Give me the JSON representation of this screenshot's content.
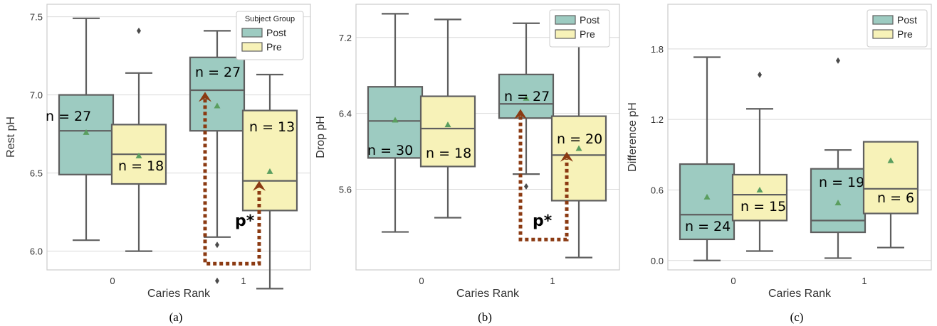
{
  "colors": {
    "post": "#9dcbc1",
    "pre": "#f7f2b8",
    "line": "#5f5f5f",
    "mean": "#5a9e5f",
    "arrow": "#8b3a12",
    "grid": "#d9d9d9",
    "frame": "#cccccc"
  },
  "chart_data": [
    {
      "type": "box",
      "caption": "(a)",
      "xlabel": "Caries Rank",
      "ylabel": "Rest pH",
      "categories": [
        "0",
        "1"
      ],
      "ylim": [
        5.88,
        7.58
      ],
      "yticks": [
        "6.0",
        "6.5",
        "7.0",
        "7.5"
      ],
      "grid": true,
      "legend": {
        "title": "Subject Group",
        "position": "top-right",
        "entries": [
          "Post",
          "Pre"
        ]
      },
      "boxes": [
        {
          "category": "0",
          "group": "Post",
          "whisker_low": 6.07,
          "q1": 6.49,
          "median": 6.77,
          "q3": 7.0,
          "whisker_high": 7.49,
          "mean": 6.76,
          "outliers": [],
          "n_label": "n = 27"
        },
        {
          "category": "0",
          "group": "Pre",
          "whisker_low": 6.0,
          "q1": 6.43,
          "median": 6.62,
          "q3": 6.81,
          "whisker_high": 7.14,
          "mean": 6.61,
          "outliers": [
            7.41
          ],
          "n_label": "n = 18"
        },
        {
          "category": "1",
          "group": "Post",
          "whisker_low": 6.09,
          "q1": 6.77,
          "median": 7.03,
          "q3": 7.24,
          "whisker_high": 7.41,
          "mean": 6.93,
          "outliers": [
            6.04,
            5.81
          ],
          "n_label": "n = 27"
        },
        {
          "category": "1",
          "group": "Pre",
          "whisker_low": 5.76,
          "q1": 6.26,
          "median": 6.45,
          "q3": 6.9,
          "whisker_high": 7.13,
          "mean": 6.51,
          "outliers": [],
          "n_label": "n = 13"
        }
      ],
      "annotation": {
        "text": "p*",
        "from": 7.01,
        "to": 6.44,
        "bar": 5.92
      }
    },
    {
      "type": "box",
      "caption": "(b)",
      "xlabel": "Caries Rank",
      "ylabel": "Drop pH",
      "categories": [
        "0",
        "1"
      ],
      "ylim": [
        4.75,
        7.55
      ],
      "yticks": [
        "5.6",
        "6.4",
        "7.2"
      ],
      "grid": true,
      "legend": {
        "title": "",
        "position": "top-right",
        "entries": [
          "Post",
          "Pre"
        ]
      },
      "boxes": [
        {
          "category": "0",
          "group": "Post",
          "whisker_low": 5.15,
          "q1": 5.93,
          "median": 6.32,
          "q3": 6.68,
          "whisker_high": 7.45,
          "mean": 6.33,
          "outliers": [],
          "n_label": "n = 30"
        },
        {
          "category": "0",
          "group": "Pre",
          "whisker_low": 5.3,
          "q1": 5.84,
          "median": 6.24,
          "q3": 6.58,
          "whisker_high": 7.39,
          "mean": 6.28,
          "outliers": [],
          "n_label": "n = 18"
        },
        {
          "category": "1",
          "group": "Post",
          "whisker_low": 5.76,
          "q1": 6.35,
          "median": 6.5,
          "q3": 6.81,
          "whisker_high": 7.35,
          "mean": 6.56,
          "outliers": [
            5.63
          ],
          "n_label": "n = 27"
        },
        {
          "category": "1",
          "group": "Pre",
          "whisker_low": 4.88,
          "q1": 5.48,
          "median": 5.96,
          "q3": 6.37,
          "whisker_high": 7.34,
          "mean": 6.03,
          "outliers": [],
          "n_label": "n = 20"
        }
      ],
      "annotation": {
        "text": "p*",
        "from": 6.43,
        "to": 5.98,
        "bar": 5.07
      }
    },
    {
      "type": "box",
      "caption": "(c)",
      "xlabel": "Caries Rank",
      "ylabel": "Difference pH",
      "categories": [
        "0",
        "1"
      ],
      "ylim": [
        -0.08,
        2.18
      ],
      "yticks": [
        "0.0",
        "0.6",
        "1.2",
        "1.8"
      ],
      "grid": true,
      "legend": {
        "title": "",
        "position": "top-right",
        "entries": [
          "Post",
          "Pre"
        ]
      },
      "boxes": [
        {
          "category": "0",
          "group": "Post",
          "whisker_low": 0.0,
          "q1": 0.18,
          "median": 0.39,
          "q3": 0.82,
          "whisker_high": 1.73,
          "mean": 0.54,
          "outliers": [],
          "n_label": "n = 24"
        },
        {
          "category": "0",
          "group": "Pre",
          "whisker_low": 0.08,
          "q1": 0.34,
          "median": 0.56,
          "q3": 0.73,
          "whisker_high": 1.29,
          "mean": 0.6,
          "outliers": [
            1.58
          ],
          "n_label": "n = 15"
        },
        {
          "category": "1",
          "group": "Post",
          "whisker_low": 0.02,
          "q1": 0.24,
          "median": 0.34,
          "q3": 0.78,
          "whisker_high": 0.94,
          "mean": 0.49,
          "outliers": [
            1.7
          ],
          "n_label": "n = 19"
        },
        {
          "category": "1",
          "group": "Pre",
          "whisker_low": 0.11,
          "q1": 0.4,
          "median": 0.61,
          "q3": 1.01,
          "whisker_high": 1.01,
          "mean": 0.85,
          "outliers": [],
          "n_label": "n = 6"
        }
      ]
    }
  ]
}
